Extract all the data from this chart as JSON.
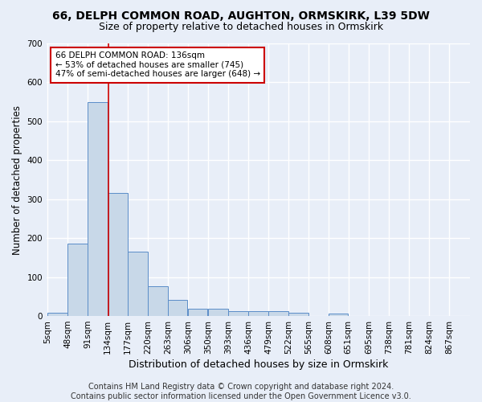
{
  "title": "66, DELPH COMMON ROAD, AUGHTON, ORMSKIRK, L39 5DW",
  "subtitle": "Size of property relative to detached houses in Ormskirk",
  "xlabel": "Distribution of detached houses by size in Ormskirk",
  "ylabel": "Number of detached properties",
  "bin_labels": [
    "5sqm",
    "48sqm",
    "91sqm",
    "134sqm",
    "177sqm",
    "220sqm",
    "263sqm",
    "306sqm",
    "350sqm",
    "393sqm",
    "436sqm",
    "479sqm",
    "522sqm",
    "565sqm",
    "608sqm",
    "651sqm",
    "695sqm",
    "738sqm",
    "781sqm",
    "824sqm",
    "867sqm"
  ],
  "bin_edges": [
    5,
    48,
    91,
    134,
    177,
    220,
    263,
    306,
    350,
    393,
    436,
    479,
    522,
    565,
    608,
    651,
    695,
    738,
    781,
    824,
    867
  ],
  "bar_heights": [
    8,
    186,
    550,
    315,
    165,
    77,
    41,
    19,
    19,
    12,
    13,
    13,
    9,
    0,
    6,
    0,
    0,
    0,
    0,
    0
  ],
  "bar_color": "#c8d8e8",
  "bar_edge_color": "#5b8dc8",
  "vline_x": 136,
  "vline_color": "#cc0000",
  "annotation_line1": "66 DELPH COMMON ROAD: 136sqm",
  "annotation_line2": "← 53% of detached houses are smaller (745)",
  "annotation_line3": "47% of semi-detached houses are larger (648) →",
  "annotation_box_color": "white",
  "annotation_box_edge": "#cc0000",
  "ylim": [
    0,
    700
  ],
  "yticks": [
    0,
    100,
    200,
    300,
    400,
    500,
    600,
    700
  ],
  "footer": "Contains HM Land Registry data © Crown copyright and database right 2024.\nContains public sector information licensed under the Open Government Licence v3.0.",
  "background_color": "#e8eef8",
  "plot_bg_color": "#e8eef8",
  "grid_color": "white",
  "title_fontsize": 10,
  "subtitle_fontsize": 9,
  "footer_fontsize": 7
}
